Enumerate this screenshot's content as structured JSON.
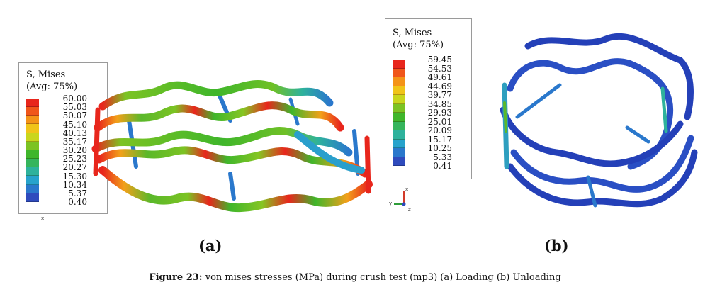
{
  "panel_a": {
    "legend": {
      "title_line1": "S, Mises",
      "title_line2": "(Avg: 75%)",
      "values": [
        "60.00",
        "55.03",
        "50.07",
        "45.10",
        "40.13",
        "35.17",
        "30.20",
        "25.23",
        "20.27",
        "15.30",
        "10.34",
        "5.37",
        "0.40"
      ],
      "colors": [
        "#e8261c",
        "#f0561a",
        "#f49318",
        "#f0c419",
        "#c9d61d",
        "#7cc323",
        "#3fb62b",
        "#35b55c",
        "#2eb29c",
        "#27a3cc",
        "#2a78cc",
        "#2f4bbd"
      ]
    },
    "axis_mark": "x",
    "label": "(a)"
  },
  "panel_b": {
    "legend": {
      "title_line1": "S, Mises",
      "title_line2": "(Avg: 75%)",
      "values": [
        "59.45",
        "54.53",
        "49.61",
        "44.69",
        "39.77",
        "34.85",
        "29.93",
        "25.01",
        "20.09",
        "15.17",
        "10.25",
        "5.33",
        "0.41"
      ],
      "colors": [
        "#e8261c",
        "#f0561a",
        "#f49318",
        "#f0c419",
        "#c9d61d",
        "#7cc323",
        "#3fb62b",
        "#35b55c",
        "#2eb29c",
        "#27a3cc",
        "#2a78cc",
        "#2f4bbd"
      ]
    },
    "triad": {
      "y": "y",
      "z": "z",
      "x": "x"
    },
    "label": "(b)"
  },
  "caption": {
    "prefix": "Figure 23:",
    "text": " von mises stresses (MPa) during crush test (mp3) (a) Loading (b) Unloading"
  }
}
